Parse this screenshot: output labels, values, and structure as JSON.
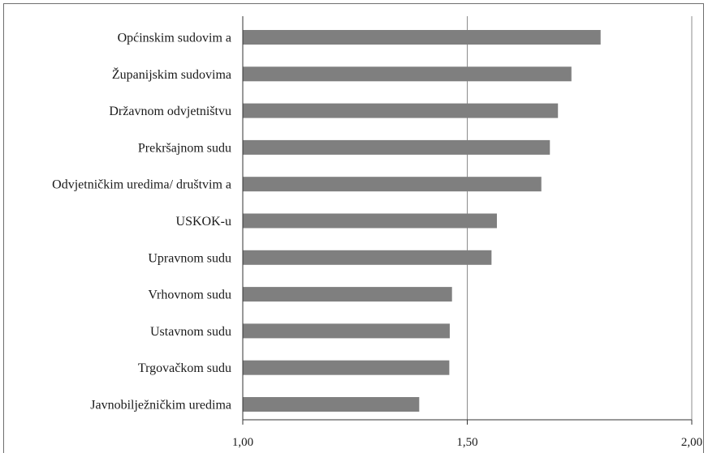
{
  "chart_data": {
    "type": "bar",
    "orientation": "horizontal",
    "categories": [
      "Općinskim sudovim a",
      "Županijskim sudovima",
      "Državnom odvjetništvu",
      "Prekršajnom sudu",
      "Odvjetničkim uredima/ društvim a",
      "USKOK-u",
      "Upravnom sudu",
      "Vrhovnom sudu",
      "Ustavnom sudu",
      "Trgovačkom sudu",
      "Javnobilježničkim uredima"
    ],
    "values": [
      1.797,
      1.732,
      1.702,
      1.684,
      1.665,
      1.566,
      1.554,
      1.466,
      1.461,
      1.46,
      1.393
    ],
    "xlim": [
      1.0,
      2.0
    ],
    "xticks": [
      1.0,
      1.5,
      2.0
    ],
    "xtick_labels": [
      "1,00",
      "1,50",
      "2,00"
    ],
    "grid": true,
    "bar_color": "#7f7f7f",
    "grid_color": "#8c8c8c"
  }
}
